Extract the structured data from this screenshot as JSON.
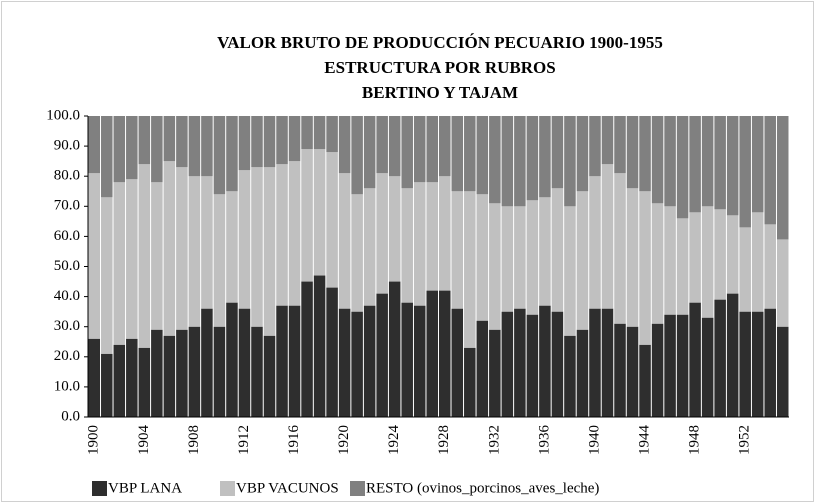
{
  "chart_data": {
    "type": "stacked_bar",
    "title": [
      "VALOR BRUTO DE PRODUCCIÓN PECUARIO 1900-1955",
      "ESTRUCTURA POR RUBROS",
      "BERTINO Y TAJAM"
    ],
    "categories": [
      "1900",
      null,
      null,
      null,
      "1904",
      null,
      null,
      null,
      "1908",
      null,
      null,
      null,
      "1912",
      null,
      null,
      null,
      "1916",
      null,
      null,
      null,
      "1920",
      null,
      null,
      null,
      "1924",
      null,
      null,
      null,
      "1928",
      null,
      null,
      null,
      "1932",
      null,
      null,
      null,
      "1936",
      null,
      null,
      null,
      "1940",
      null,
      null,
      null,
      "1944",
      null,
      null,
      null,
      "1948",
      null,
      null,
      null,
      "1952",
      null,
      null,
      null
    ],
    "series": [
      {
        "name": "VBP LANA",
        "color": "#2e2e2e",
        "values": [
          26,
          21,
          24,
          26,
          23,
          29,
          27,
          29,
          30,
          36,
          30,
          38,
          36,
          30,
          27,
          37,
          37,
          45,
          47,
          43,
          36,
          35,
          37,
          41,
          45,
          38,
          37,
          42,
          42,
          36,
          23,
          32,
          29,
          35,
          36,
          34,
          37,
          35,
          27,
          29,
          36,
          36,
          31,
          30,
          24,
          31,
          34,
          34,
          38,
          33,
          39,
          41,
          35,
          35,
          36,
          30
        ]
      },
      {
        "name": "VBP VACUNOS",
        "color": "#c0c0c0",
        "values": [
          55,
          52,
          54,
          53,
          61,
          49,
          58,
          54,
          50,
          44,
          44,
          37,
          46,
          53,
          56,
          47,
          48,
          44,
          42,
          45,
          45,
          39,
          39,
          40,
          35,
          38,
          41,
          36,
          38,
          39,
          52,
          42,
          42,
          35,
          34,
          38,
          36,
          41,
          43,
          46,
          44,
          48,
          50,
          46,
          51,
          40,
          36,
          32,
          30,
          37,
          30,
          26,
          28,
          33,
          28,
          29
        ]
      },
      {
        "name": "RESTO (ovinos_porcinos_aves_leche)",
        "color": "#808080",
        "values": [
          19,
          27,
          22,
          21,
          16,
          22,
          15,
          17,
          20,
          20,
          26,
          25,
          18,
          17,
          17,
          16,
          15,
          11,
          11,
          12,
          19,
          26,
          24,
          19,
          20,
          24,
          22,
          22,
          20,
          25,
          25,
          26,
          29,
          30,
          30,
          28,
          27,
          24,
          30,
          25,
          20,
          16,
          19,
          24,
          25,
          29,
          30,
          34,
          32,
          30,
          31,
          33,
          37,
          32,
          36,
          41
        ]
      }
    ],
    "ylim": [
      0,
      100
    ],
    "yticks": [
      {
        "value": 0,
        "label": "0.0"
      },
      {
        "value": 10,
        "label": "10.0"
      },
      {
        "value": 20,
        "label": "20.0"
      },
      {
        "value": 30,
        "label": "30.0"
      },
      {
        "value": 40,
        "label": "40.0"
      },
      {
        "value": 50,
        "label": "50.0"
      },
      {
        "value": 60,
        "label": "60.0"
      },
      {
        "value": 70,
        "label": "70.0"
      },
      {
        "value": 80,
        "label": "80.0"
      },
      {
        "value": 90,
        "label": "90.0"
      },
      {
        "value": 100,
        "label": "100.0"
      }
    ]
  }
}
